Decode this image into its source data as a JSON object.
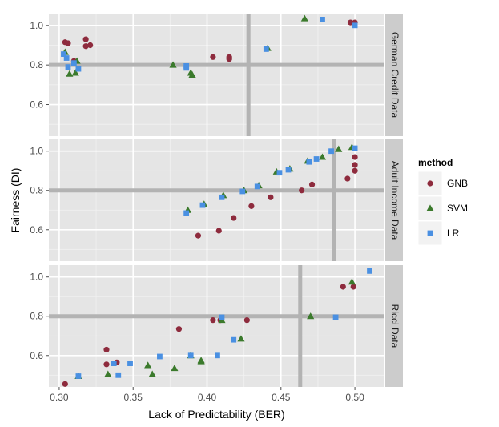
{
  "chart_data": {
    "type": "scatter",
    "xlabel": "Lack of Predictability (BER)",
    "ylabel": "Fairness (DI)",
    "xlim": [
      0.293,
      0.52
    ],
    "x_ticks": [
      "0.30",
      "0.35",
      "0.40",
      "0.45",
      "0.50"
    ],
    "x_tick_values": [
      0.3,
      0.35,
      0.4,
      0.45,
      0.5
    ],
    "y_ticks": [
      "0.6",
      "0.8",
      "1.0"
    ],
    "y_tick_values": [
      0.6,
      0.8,
      1.0
    ],
    "legend": {
      "title": "method",
      "position": "right",
      "entries": [
        {
          "name": "GNB",
          "color": "#8e2b3d",
          "shape": "circle"
        },
        {
          "name": "SVM",
          "color": "#3b7a2c",
          "shape": "triangle"
        },
        {
          "name": "LR",
          "color": "#4a90e2",
          "shape": "square"
        }
      ]
    },
    "reference_line_color": "#b3b3b3",
    "panels": [
      {
        "label": "German Credit Data",
        "ylim": [
          0.44,
          1.06
        ],
        "hline": 0.8,
        "vline": 0.428,
        "series": [
          {
            "method": "GNB",
            "points": [
              [
                0.304,
                0.915
              ],
              [
                0.306,
                0.91
              ],
              [
                0.31,
                0.82
              ],
              [
                0.318,
                0.93
              ],
              [
                0.318,
                0.895
              ],
              [
                0.321,
                0.9
              ],
              [
                0.404,
                0.84
              ],
              [
                0.415,
                0.84
              ],
              [
                0.415,
                0.83
              ],
              [
                0.497,
                1.015
              ],
              [
                0.5,
                1.015
              ]
            ]
          },
          {
            "method": "SVM",
            "points": [
              [
                0.304,
                0.865
              ],
              [
                0.307,
                0.755
              ],
              [
                0.311,
                0.76
              ],
              [
                0.312,
                0.82
              ],
              [
                0.377,
                0.8
              ],
              [
                0.389,
                0.76
              ],
              [
                0.39,
                0.75
              ],
              [
                0.441,
                0.885
              ],
              [
                0.466,
                1.035
              ]
            ]
          },
          {
            "method": "LR",
            "points": [
              [
                0.303,
                0.855
              ],
              [
                0.305,
                0.835
              ],
              [
                0.306,
                0.79
              ],
              [
                0.31,
                0.81
              ],
              [
                0.313,
                0.78
              ],
              [
                0.386,
                0.785
              ],
              [
                0.386,
                0.795
              ],
              [
                0.44,
                0.88
              ],
              [
                0.478,
                1.03
              ],
              [
                0.5,
                1.0
              ]
            ]
          }
        ]
      },
      {
        "label": "Adult Income Data",
        "ylim": [
          0.44,
          1.06
        ],
        "hline": 0.8,
        "vline": 0.486,
        "series": [
          {
            "method": "GNB",
            "points": [
              [
                0.394,
                0.57
              ],
              [
                0.408,
                0.595
              ],
              [
                0.418,
                0.66
              ],
              [
                0.43,
                0.72
              ],
              [
                0.443,
                0.765
              ],
              [
                0.464,
                0.8
              ],
              [
                0.471,
                0.83
              ],
              [
                0.495,
                0.86
              ],
              [
                0.5,
                0.9
              ],
              [
                0.5,
                0.93
              ],
              [
                0.5,
                0.97
              ]
            ]
          },
          {
            "method": "SVM",
            "points": [
              [
                0.387,
                0.7
              ],
              [
                0.398,
                0.73
              ],
              [
                0.411,
                0.775
              ],
              [
                0.425,
                0.8
              ],
              [
                0.435,
                0.825
              ],
              [
                0.447,
                0.895
              ],
              [
                0.456,
                0.91
              ],
              [
                0.468,
                0.95
              ],
              [
                0.478,
                0.97
              ],
              [
                0.489,
                1.01
              ],
              [
                0.498,
                1.02
              ]
            ]
          },
          {
            "method": "LR",
            "points": [
              [
                0.386,
                0.685
              ],
              [
                0.397,
                0.725
              ],
              [
                0.41,
                0.765
              ],
              [
                0.424,
                0.795
              ],
              [
                0.434,
                0.82
              ],
              [
                0.449,
                0.89
              ],
              [
                0.455,
                0.905
              ],
              [
                0.469,
                0.945
              ],
              [
                0.474,
                0.96
              ],
              [
                0.484,
                1.0
              ],
              [
                0.5,
                1.015
              ]
            ]
          }
        ]
      },
      {
        "label": "Ricci Data",
        "ylim": [
          0.44,
          1.06
        ],
        "hline": 0.8,
        "vline": 0.463,
        "series": [
          {
            "method": "GNB",
            "points": [
              [
                0.304,
                0.455
              ],
              [
                0.332,
                0.63
              ],
              [
                0.332,
                0.555
              ],
              [
                0.339,
                0.565
              ],
              [
                0.381,
                0.735
              ],
              [
                0.404,
                0.78
              ],
              [
                0.409,
                0.78
              ],
              [
                0.427,
                0.78
              ],
              [
                0.492,
                0.95
              ],
              [
                0.499,
                0.95
              ]
            ]
          },
          {
            "method": "SVM",
            "points": [
              [
                0.313,
                0.495
              ],
              [
                0.333,
                0.505
              ],
              [
                0.36,
                0.55
              ],
              [
                0.363,
                0.505
              ],
              [
                0.378,
                0.535
              ],
              [
                0.389,
                0.6
              ],
              [
                0.396,
                0.575
              ],
              [
                0.396,
                0.57
              ],
              [
                0.41,
                0.78
              ],
              [
                0.423,
                0.685
              ],
              [
                0.47,
                0.8
              ],
              [
                0.498,
                0.975
              ]
            ]
          },
          {
            "method": "LR",
            "points": [
              [
                0.313,
                0.495
              ],
              [
                0.337,
                0.56
              ],
              [
                0.34,
                0.5
              ],
              [
                0.348,
                0.56
              ],
              [
                0.368,
                0.595
              ],
              [
                0.389,
                0.6
              ],
              [
                0.407,
                0.6
              ],
              [
                0.41,
                0.795
              ],
              [
                0.418,
                0.68
              ],
              [
                0.487,
                0.795
              ],
              [
                0.51,
                1.03
              ]
            ]
          }
        ]
      }
    ]
  }
}
